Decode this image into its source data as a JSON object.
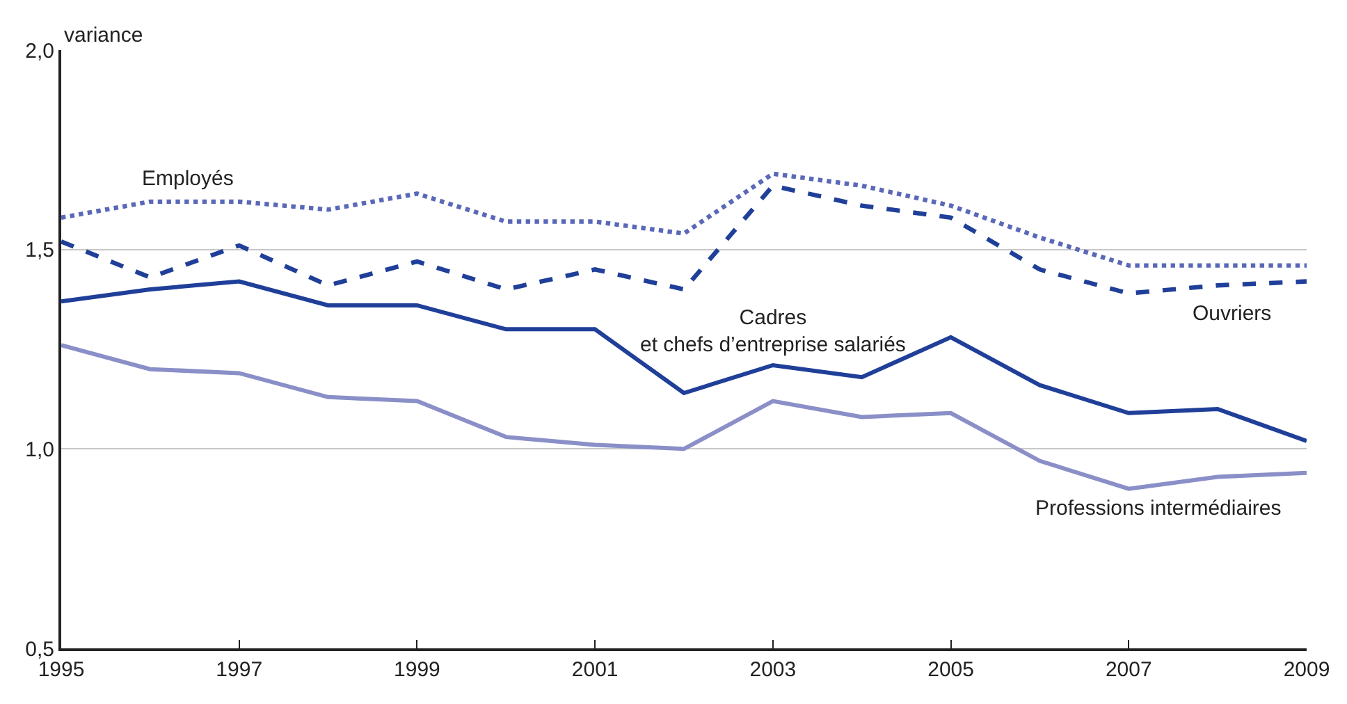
{
  "chart_data": {
    "type": "line",
    "ylabel": "variance",
    "x": [
      1995,
      1996,
      1997,
      1998,
      1999,
      2000,
      2001,
      2002,
      2003,
      2004,
      2005,
      2006,
      2007,
      2008,
      2009
    ],
    "xlim": [
      1995,
      2009
    ],
    "xticks": [
      1995,
      1997,
      1999,
      2001,
      2003,
      2005,
      2007,
      2009
    ],
    "ylim": [
      0.5,
      2.0
    ],
    "yticks": [
      {
        "value": 0.5,
        "label": "0,5"
      },
      {
        "value": 1.0,
        "label": "1,0"
      },
      {
        "value": 1.5,
        "label": "1,5"
      },
      {
        "value": 2.0,
        "label": "2,0"
      }
    ],
    "grid": "y",
    "legend": false,
    "series": [
      {
        "name": "Employés",
        "color": "#5a68b8",
        "line_style": "dotted",
        "values": [
          1.58,
          1.62,
          1.62,
          1.6,
          1.64,
          1.57,
          1.57,
          1.54,
          1.69,
          1.66,
          1.61,
          1.53,
          1.46,
          1.46,
          1.46
        ]
      },
      {
        "name": "Ouvriers",
        "color": "#1f3f99",
        "line_style": "dashed",
        "values": [
          1.52,
          1.43,
          1.51,
          1.41,
          1.47,
          1.4,
          1.45,
          1.4,
          1.66,
          1.61,
          1.58,
          1.45,
          1.39,
          1.41,
          1.42
        ]
      },
      {
        "name": "Cadres\net chefs d’entreprise salariés",
        "color": "#1f3f99",
        "line_style": "solid",
        "values": [
          1.37,
          1.4,
          1.42,
          1.36,
          1.36,
          1.3,
          1.3,
          1.14,
          1.21,
          1.18,
          1.28,
          1.16,
          1.09,
          1.1,
          1.02
        ]
      },
      {
        "name": "Professions intermédiaires",
        "color": "#8a8fc8",
        "line_style": "solid",
        "values": [
          1.26,
          1.2,
          1.19,
          1.13,
          1.12,
          1.03,
          1.01,
          1.0,
          1.12,
          1.08,
          1.09,
          0.97,
          0.9,
          0.93,
          0.94
        ]
      }
    ]
  }
}
